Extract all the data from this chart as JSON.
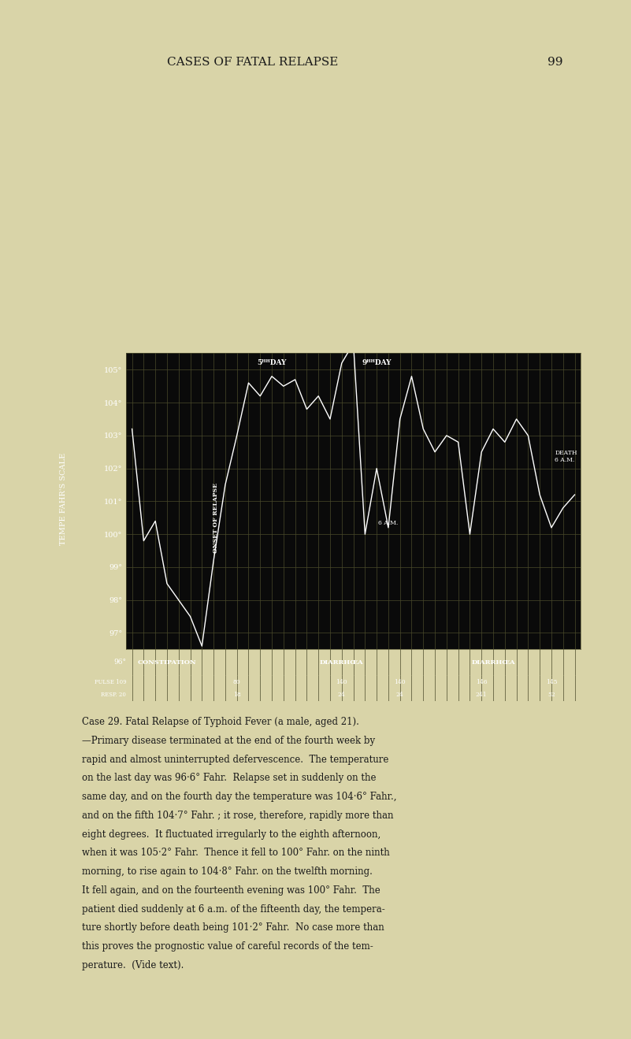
{
  "title": "CASES OF FATAL RELAPSE",
  "page_number": "99",
  "background_page": "#d9d4a8",
  "chart_bg": "#0a0a0a",
  "line_color": "#ffffff",
  "grid_color": "#4a4a2a",
  "y_min": 96.5,
  "y_max": 105.5,
  "y_ticks": [
    97,
    98,
    99,
    100,
    101,
    102,
    103,
    104,
    105
  ],
  "y_label": "TEMPE FAHR'S SCALE",
  "temperature_data": [
    [
      0,
      103.2
    ],
    [
      1,
      99.8
    ],
    [
      2,
      100.4
    ],
    [
      3,
      98.5
    ],
    [
      4,
      98.0
    ],
    [
      5,
      97.5
    ],
    [
      6,
      96.6
    ],
    [
      7,
      99.2
    ],
    [
      8,
      101.5
    ],
    [
      9,
      103.0
    ],
    [
      10,
      104.6
    ],
    [
      11,
      104.2
    ],
    [
      12,
      104.8
    ],
    [
      13,
      104.5
    ],
    [
      14,
      104.7
    ],
    [
      15,
      103.8
    ],
    [
      16,
      104.2
    ],
    [
      17,
      103.5
    ],
    [
      18,
      105.2
    ],
    [
      19,
      105.8
    ],
    [
      20,
      100.0
    ],
    [
      21,
      102.0
    ],
    [
      22,
      100.2
    ],
    [
      23,
      103.5
    ],
    [
      24,
      104.8
    ],
    [
      25,
      103.2
    ],
    [
      26,
      102.5
    ],
    [
      27,
      103.0
    ],
    [
      28,
      102.8
    ],
    [
      29,
      100.0
    ],
    [
      30,
      102.5
    ],
    [
      31,
      103.2
    ],
    [
      32,
      102.8
    ],
    [
      33,
      103.5
    ],
    [
      34,
      103.0
    ],
    [
      35,
      101.2
    ],
    [
      36,
      100.2
    ],
    [
      37,
      100.8
    ],
    [
      38,
      101.2
    ]
  ],
  "caption_lines": [
    "Case 29. Fatal Relapse of Typhoid Fever (a male, aged 21).",
    "—Primary disease terminated at the end of the fourth week by",
    "rapid and almost uninterrupted defervescence.  The temperature",
    "on the last day was 96·6° Fahr.  Relapse set in suddenly on the",
    "same day, and on the fourth day the temperature was 104·6° Fahr.,",
    "and on the fifth 104·7° Fahr. ; it rose, therefore, rapidly more than",
    "eight degrees.  It fluctuated irregularly to the eighth afternoon,",
    "when it was 105·2° Fahr.  Thence it fell to 100° Fahr. on the ninth",
    "morning, to rise again to 104·8° Fahr. on the twelfth morning.",
    "It fell again, and on the fourteenth evening was 100° Fahr.  The",
    "patient died suddenly at 6 a.m. of the fifteenth day, the tempera-",
    "ture shortly before death being 101·2° Fahr.  No case more than",
    "this proves the prognostic value of careful records of the tem-",
    "perature.  (Vide text)."
  ]
}
